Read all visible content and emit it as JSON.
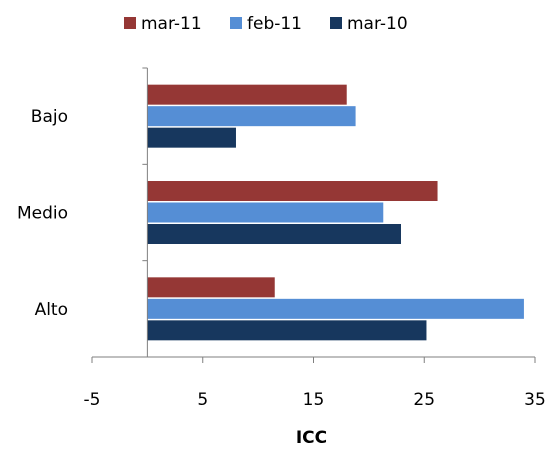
{
  "chart_data": {
    "type": "bar",
    "orientation": "horizontal",
    "title": "",
    "xlabel": "ICC",
    "ylabel": "",
    "categories": [
      "Bajo",
      "Medio",
      "Alto"
    ],
    "series": [
      {
        "name": "mar-11",
        "color": "#953735",
        "values": [
          18.0,
          26.2,
          11.5
        ]
      },
      {
        "name": "feb-11",
        "color": "#558ED5",
        "values": [
          18.8,
          21.3,
          34.0
        ]
      },
      {
        "name": "mar-10",
        "color": "#17375E",
        "values": [
          8.0,
          22.9,
          25.2
        ]
      }
    ],
    "xlim": [
      -5,
      35
    ],
    "xticks": [
      -5,
      5,
      15,
      25,
      35
    ],
    "legend_position": "top",
    "grid": false
  }
}
